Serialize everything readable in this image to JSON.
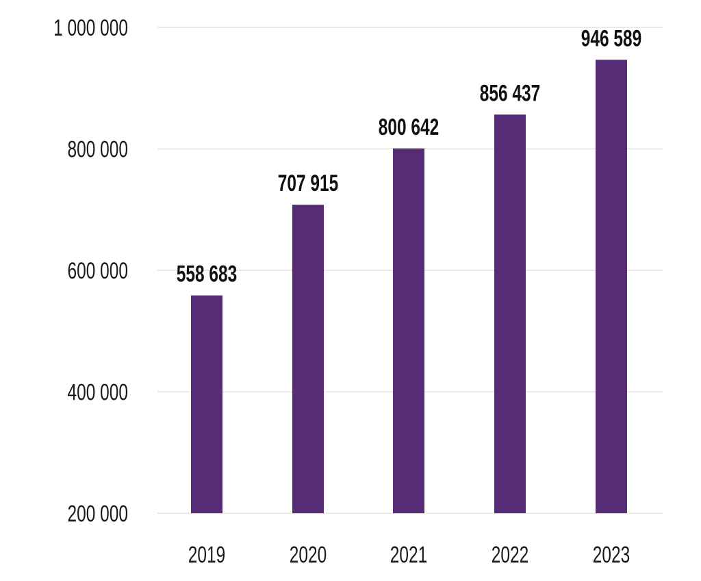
{
  "chart_data": {
    "type": "bar",
    "title": "",
    "xlabel": "",
    "ylabel": "",
    "categories": [
      "2019",
      "2020",
      "2021",
      "2022",
      "2023"
    ],
    "values": [
      558683,
      707915,
      800642,
      856437,
      946589
    ],
    "data_labels": [
      "558 683",
      "707 915",
      "800 642",
      "856 437",
      "946 589"
    ],
    "ylim": [
      200000,
      1000000
    ],
    "yticks": [
      200000,
      400000,
      600000,
      800000,
      1000000
    ],
    "ytick_labels": [
      "200 000",
      "400 000",
      "600 000",
      "800 000",
      "1 000 000"
    ],
    "grid": true,
    "legend": "none",
    "colors": {
      "bar": "#552c75",
      "grid": "#e6e2dc"
    }
  }
}
